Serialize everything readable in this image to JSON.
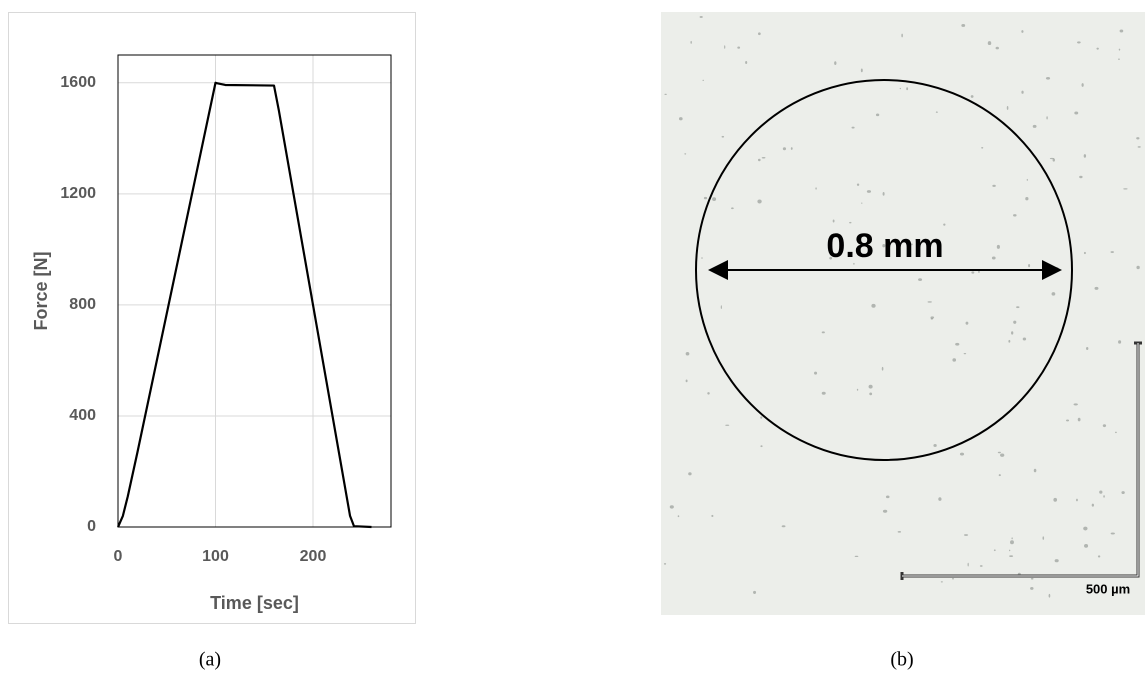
{
  "chart_data": {
    "type": "line",
    "x_label": "Time [sec]",
    "y_label": "Force [N]",
    "x": [
      0,
      5,
      10,
      20,
      100,
      102,
      110,
      160,
      165,
      230,
      238,
      242,
      260
    ],
    "values": [
      0,
      40,
      110,
      270,
      1600,
      1598,
      1592,
      1590,
      1500,
      200,
      40,
      3,
      0
    ],
    "color": "#000000",
    "xlim": [
      0,
      280
    ],
    "ylim": [
      0,
      1700
    ],
    "xticks": [
      0,
      100,
      200
    ],
    "yticks": [
      0,
      400,
      800,
      1200,
      1600
    ],
    "grid": true
  },
  "micrograph": {
    "measure_label": "0.8 mm",
    "scale_label": "500 µm"
  },
  "captions": [
    "(a)",
    "(b)"
  ]
}
